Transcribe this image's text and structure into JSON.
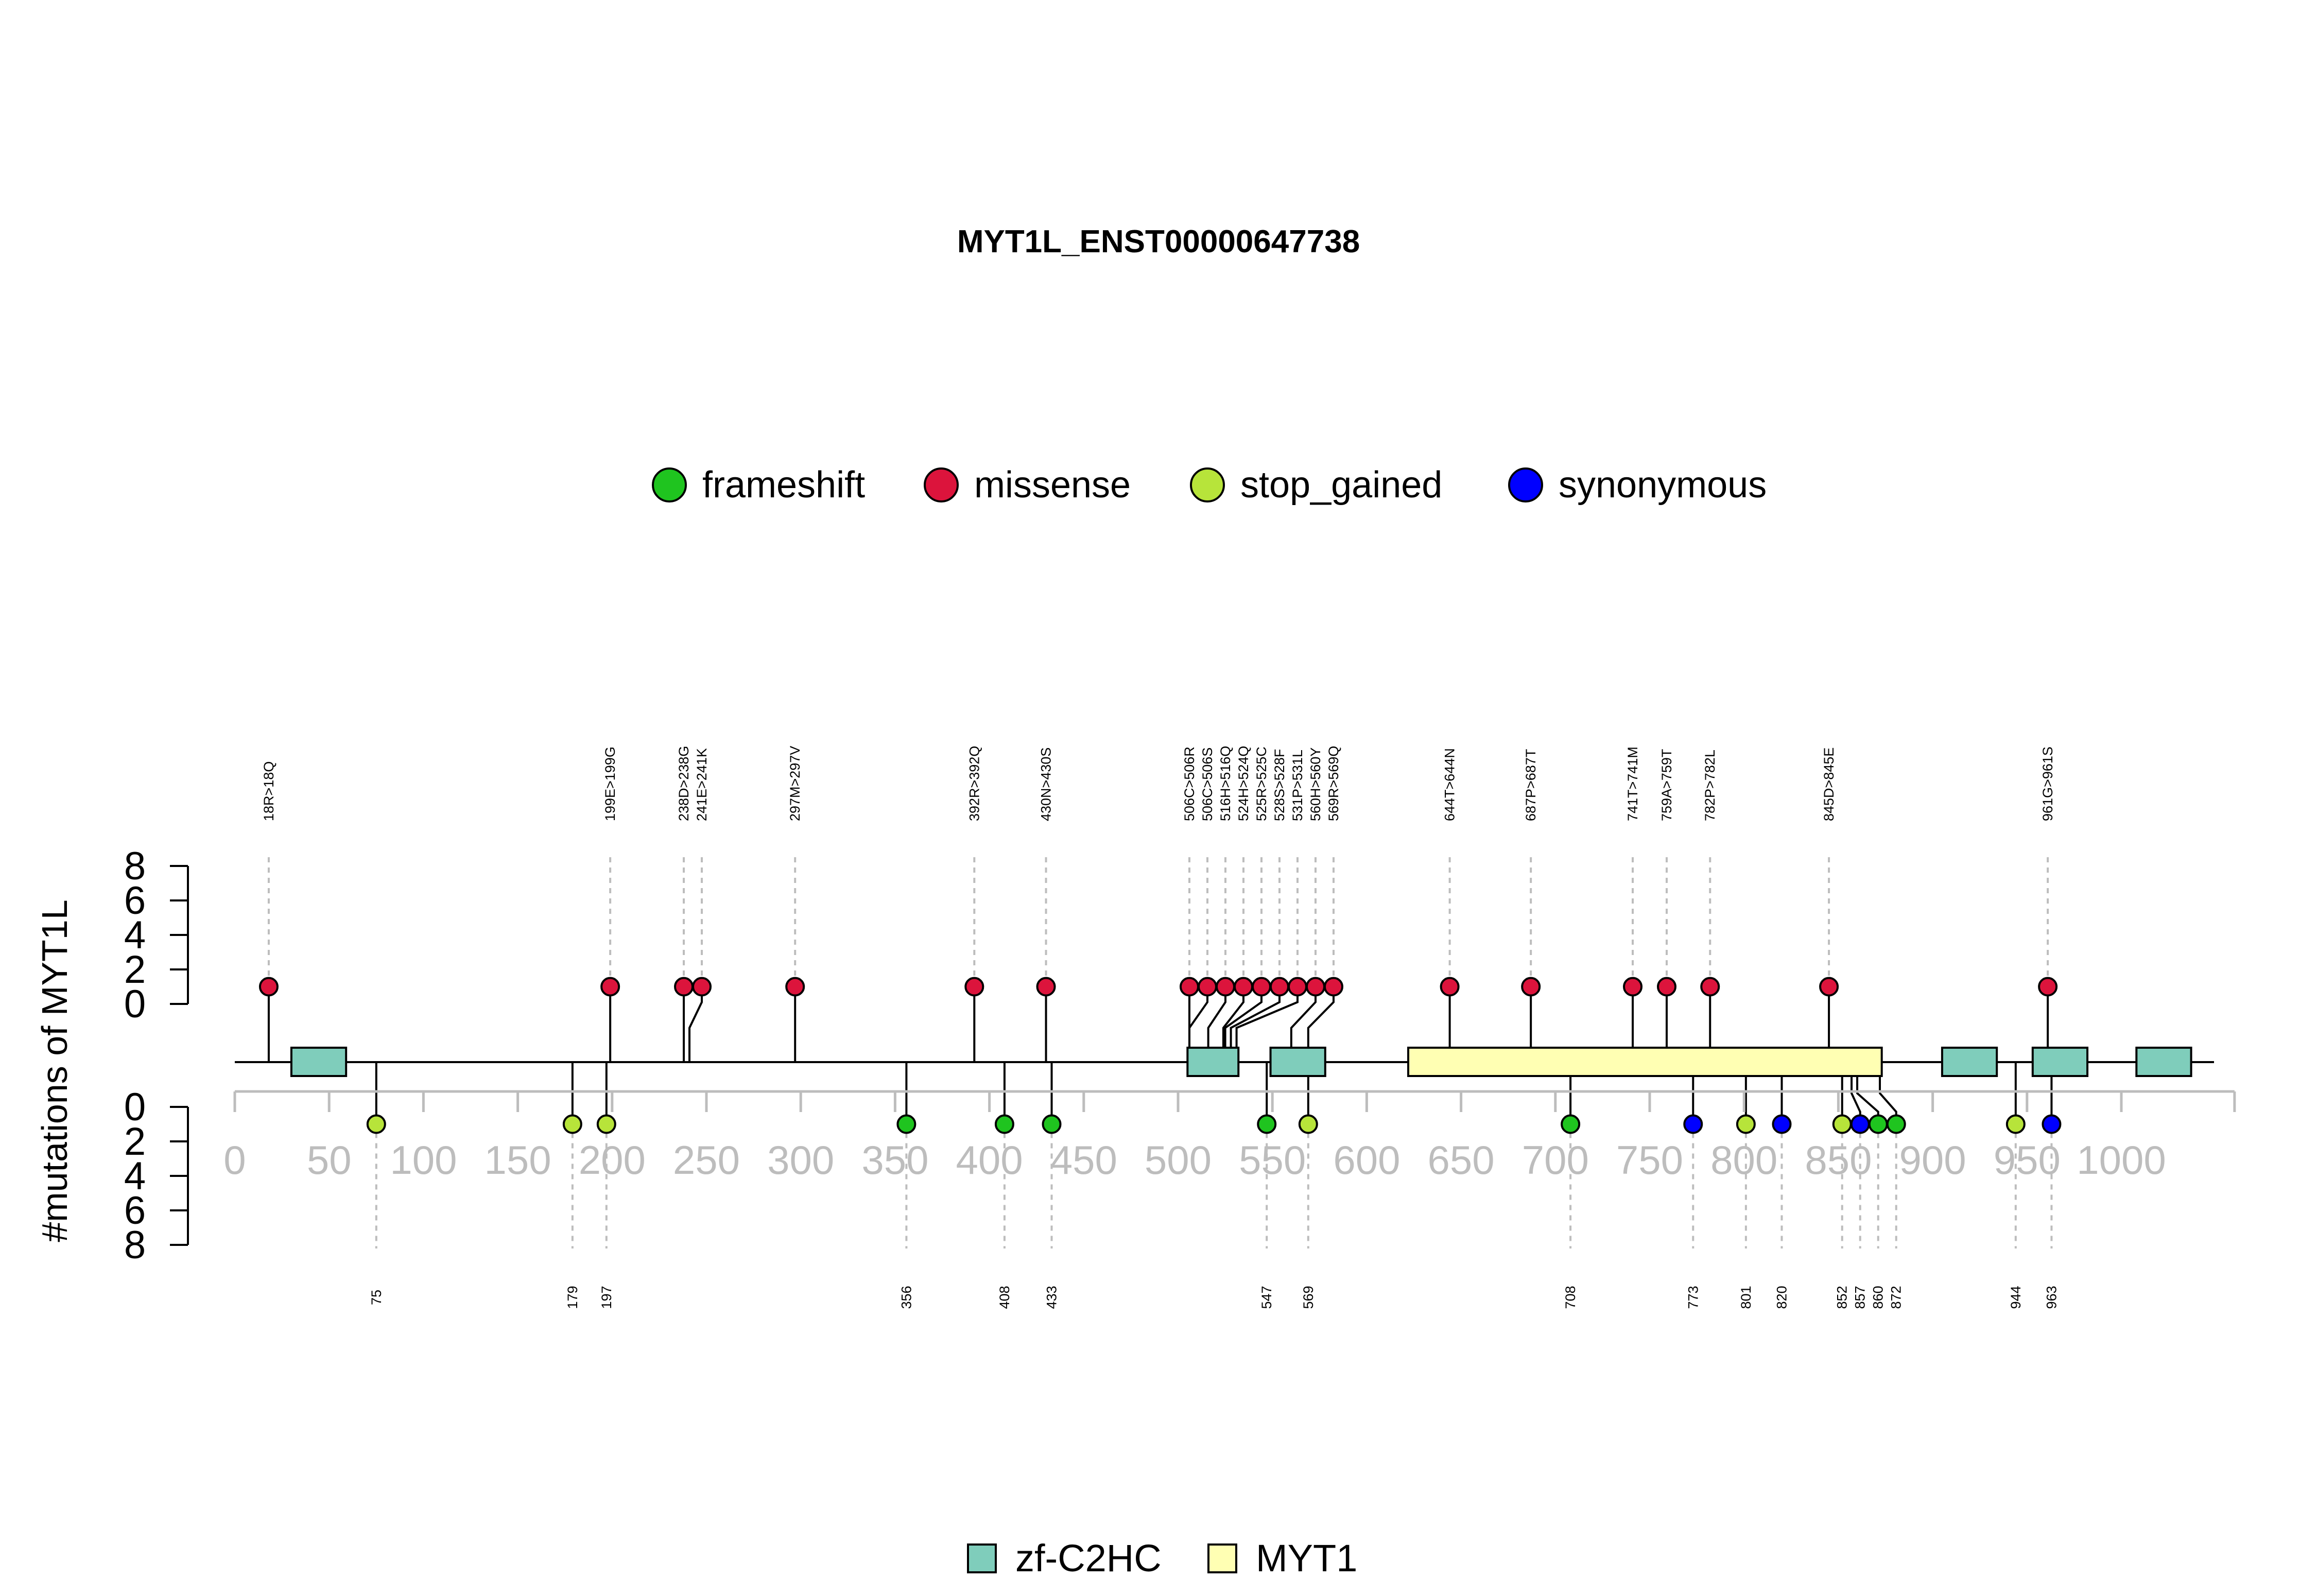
{
  "chart_data": {
    "type": "lollipop",
    "title": "MYT1L_ENST00000647738",
    "ylabel": "#mutations of MYT1L",
    "x_range": [
      0,
      1060
    ],
    "x_ticks": [
      0,
      50,
      100,
      150,
      200,
      250,
      300,
      350,
      400,
      450,
      500,
      550,
      600,
      650,
      700,
      750,
      800,
      850,
      900,
      950,
      1000
    ],
    "y_ticks": [
      0,
      2,
      4,
      6,
      8
    ],
    "y_range": [
      0,
      8
    ],
    "grid": false,
    "mutation_legend": [
      {
        "name": "frameshift",
        "color": "#1FC41F"
      },
      {
        "name": "missense",
        "color": "#DC143C"
      },
      {
        "name": "stop_gained",
        "color": "#B7E43A"
      },
      {
        "name": "synonymous",
        "color": "#0000FF"
      }
    ],
    "domain_legend": [
      {
        "name": "zf-C2HC",
        "color": "#7FCDBB"
      },
      {
        "name": "MYT1",
        "color": "#FFFFB3"
      }
    ],
    "domains": [
      {
        "name": "zf-C2HC",
        "start": 30,
        "end": 59
      },
      {
        "name": "zf-C2HC",
        "start": 505,
        "end": 532
      },
      {
        "name": "zf-C2HC",
        "start": 549,
        "end": 578
      },
      {
        "name": "MYT1",
        "start": 622,
        "end": 873
      },
      {
        "name": "zf-C2HC",
        "start": 905,
        "end": 934
      },
      {
        "name": "zf-C2HC",
        "start": 953,
        "end": 982
      },
      {
        "name": "zf-C2HC",
        "start": 1008,
        "end": 1037
      }
    ],
    "top_mutations": [
      {
        "pos": 18,
        "label": "18R>18Q",
        "type": "missense",
        "count": 1
      },
      {
        "pos": 199,
        "label": "199E>199G",
        "type": "missense",
        "count": 1
      },
      {
        "pos": 238,
        "label": "238D>238G",
        "type": "missense",
        "count": 1
      },
      {
        "pos": 241,
        "label": "241E>241K",
        "type": "missense",
        "count": 1
      },
      {
        "pos": 297,
        "label": "297M>297V",
        "type": "missense",
        "count": 1
      },
      {
        "pos": 392,
        "label": "392R>392Q",
        "type": "missense",
        "count": 1
      },
      {
        "pos": 430,
        "label": "430N>430S",
        "type": "missense",
        "count": 1
      },
      {
        "pos": 506,
        "label": "506C>506R",
        "type": "missense",
        "count": 1
      },
      {
        "pos": 506,
        "label": "506C>506S",
        "type": "missense",
        "count": 1
      },
      {
        "pos": 516,
        "label": "516H>516Q",
        "type": "missense",
        "count": 1
      },
      {
        "pos": 524,
        "label": "524H>524Q",
        "type": "missense",
        "count": 1
      },
      {
        "pos": 525,
        "label": "525R>525C",
        "type": "missense",
        "count": 1
      },
      {
        "pos": 528,
        "label": "528S>528F",
        "type": "missense",
        "count": 1
      },
      {
        "pos": 531,
        "label": "531P>531L",
        "type": "missense",
        "count": 1
      },
      {
        "pos": 560,
        "label": "560H>560Y",
        "type": "missense",
        "count": 1
      },
      {
        "pos": 569,
        "label": "569R>569Q",
        "type": "missense",
        "count": 1
      },
      {
        "pos": 644,
        "label": "644T>644N",
        "type": "missense",
        "count": 1
      },
      {
        "pos": 687,
        "label": "687P>687T",
        "type": "missense",
        "count": 1
      },
      {
        "pos": 741,
        "label": "741T>741M",
        "type": "missense",
        "count": 1
      },
      {
        "pos": 759,
        "label": "759A>759T",
        "type": "missense",
        "count": 1
      },
      {
        "pos": 782,
        "label": "782P>782L",
        "type": "missense",
        "count": 1
      },
      {
        "pos": 845,
        "label": "845D>845E",
        "type": "missense",
        "count": 1
      },
      {
        "pos": 961,
        "label": "961G>961S",
        "type": "missense",
        "count": 1
      }
    ],
    "bottom_mutations": [
      {
        "pos": 75,
        "label": "75",
        "type": "stop_gained",
        "count": 1
      },
      {
        "pos": 179,
        "label": "179",
        "type": "stop_gained",
        "count": 1
      },
      {
        "pos": 197,
        "label": "197",
        "type": "stop_gained",
        "count": 1
      },
      {
        "pos": 356,
        "label": "356",
        "type": "frameshift",
        "count": 1
      },
      {
        "pos": 408,
        "label": "408",
        "type": "frameshift",
        "count": 1
      },
      {
        "pos": 433,
        "label": "433",
        "type": "frameshift",
        "count": 1
      },
      {
        "pos": 547,
        "label": "547",
        "type": "frameshift",
        "count": 1
      },
      {
        "pos": 569,
        "label": "569",
        "type": "stop_gained",
        "count": 1
      },
      {
        "pos": 708,
        "label": "708",
        "type": "frameshift",
        "count": 1
      },
      {
        "pos": 773,
        "label": "773",
        "type": "synonymous",
        "count": 1
      },
      {
        "pos": 801,
        "label": "801",
        "type": "stop_gained",
        "count": 1
      },
      {
        "pos": 820,
        "label": "820",
        "type": "synonymous",
        "count": 1
      },
      {
        "pos": 852,
        "label": "852",
        "type": "stop_gained",
        "count": 1
      },
      {
        "pos": 857,
        "label": "857",
        "type": "synonymous",
        "count": 1
      },
      {
        "pos": 860,
        "label": "860",
        "type": "frameshift",
        "count": 1
      },
      {
        "pos": 872,
        "label": "872",
        "type": "frameshift",
        "count": 1
      },
      {
        "pos": 944,
        "label": "944",
        "type": "stop_gained",
        "count": 1
      },
      {
        "pos": 963,
        "label": "963",
        "type": "synonymous",
        "count": 1
      }
    ]
  }
}
